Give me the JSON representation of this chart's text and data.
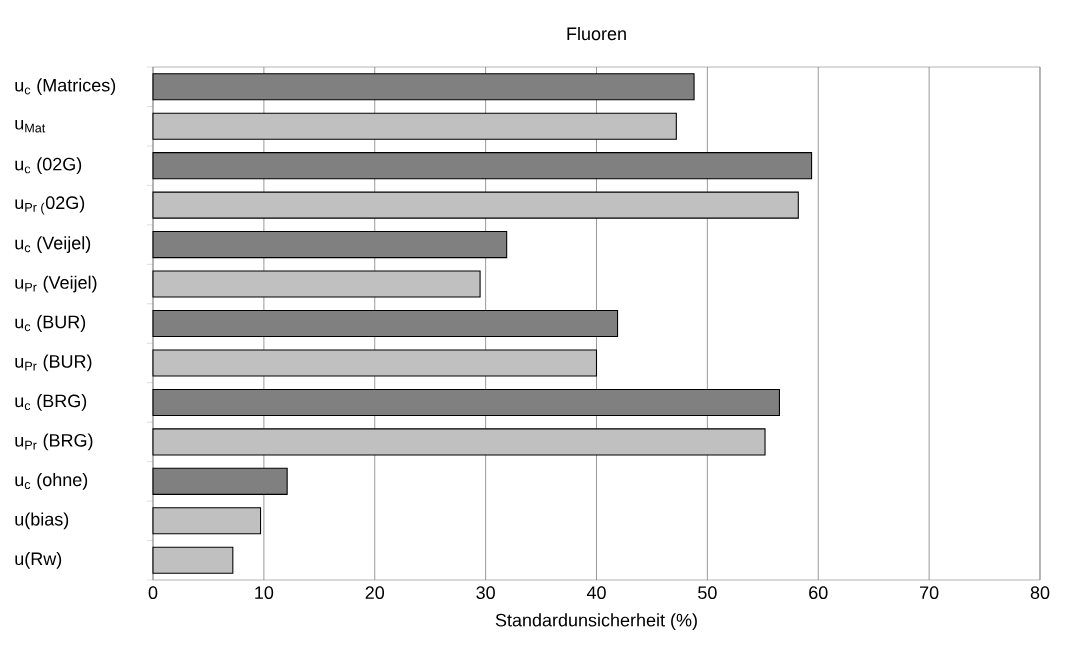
{
  "chart_data": {
    "type": "bar",
    "orientation": "horizontal",
    "title": "Fluoren",
    "xlabel": "Standardunsicherheit (%)",
    "categories": [
      "u$_{c}$ (Matrices)",
      "u$_{Mat}$",
      "u$_{c}$ (02G)",
      "u$_{Pr (}$02G)",
      "u$_{c}$ (Veijel)",
      "u$_{Pr}$ (Veijel)",
      "u$_{c}$ (BUR)",
      "u$_{Pr}$ (BUR)",
      "u$_{c}$ (BRG)",
      "u$_{Pr}$ (BRG)",
      "u$_{c}$ (ohne)",
      "u(bias)",
      "u(Rw)"
    ],
    "values": [
      48.8,
      47.2,
      59.4,
      58.2,
      31.9,
      29.5,
      41.9,
      40.0,
      56.5,
      55.2,
      12.1,
      9.7,
      7.2
    ],
    "colors": [
      "#808080",
      "#c0c0c0",
      "#808080",
      "#c0c0c0",
      "#808080",
      "#c0c0c0",
      "#808080",
      "#c0c0c0",
      "#808080",
      "#c0c0c0",
      "#808080",
      "#c0c0c0",
      "#c0c0c0"
    ],
    "xlim": [
      0,
      80
    ],
    "xticks": [
      0,
      10,
      20,
      30,
      40,
      50,
      60,
      70,
      80
    ],
    "grid": "x"
  }
}
